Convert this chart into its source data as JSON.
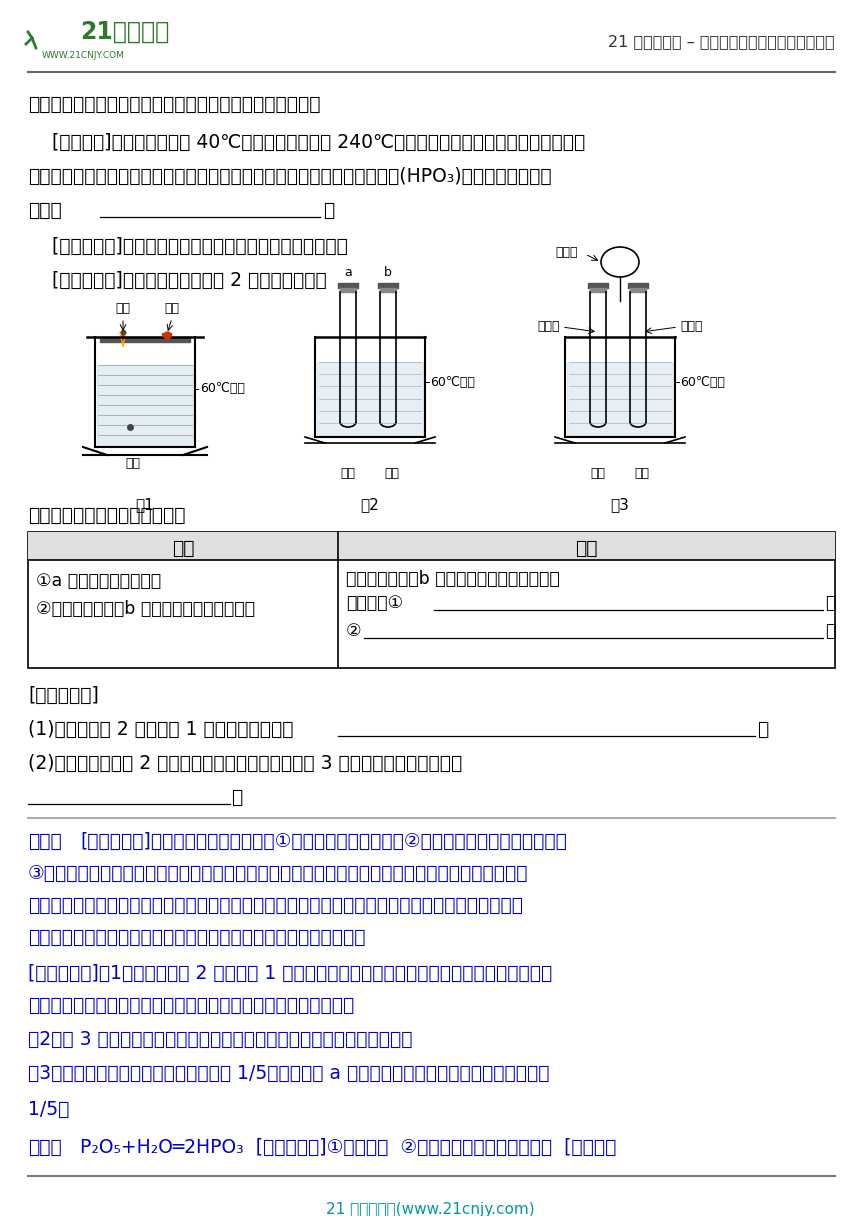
{
  "header_right": "21 世纪教育网 – 中小学教育资源及组卷应用平台",
  "footer_text": "21 世纪教育网(www.21cnjy.com)",
  "line1": "大家对磷燃烧生成的大量白烟是否危害人体健康提出疑问。",
  "line2_a": "    [查阅资料]白磷的着火点是 40℃，红磷的着火点是 240℃，燃烧产物五氧化二磷是白色固体，会",
  "line3": "刺激人体呼吸道，五氧化二磷可能与空气中水蒸气反应，生成有毒的偏磷酸(HPO₃)，该反应的化学方",
  "line4_pre": "程式为",
  "line4_post": "。",
  "line5": "    [变流与讨论]白烟对人体健康有害，该实验装置必须改进。",
  "line6": "    [改进与实验]同学们按改进后的图 2 装置进行实验。",
  "line_qing": "请你帮助他们将下表补充完整：",
  "tbl_h1": "现象",
  "tbl_h2": "解释",
  "tbl_c1a": "①a 试管中的白磷燃烧；",
  "tbl_c1b": "②烧杯中的白磷、b 试管中的红磷没有燃烧。",
  "tbl_c2a": "烧杯中的白磷、b 试管中的红磷没有燃烧的原",
  "tbl_c2b": "因分别是①",
  "tbl_c2b_post": "；",
  "tbl_c2c": "②",
  "tbl_c2c_post": "。",
  "fansi_hdr": "[反思与评价]",
  "fansi1_pre": "(1)改进后的图 2 装置与图 1 装置比较，优点是",
  "fansi1_post": "。",
  "fansi2": "(2)小林同学指出图 2 装置仍有不足之处，并设计了图 3 装置，其中气球的作用是",
  "fansi2b_post": "。",
  "jiexi_bold": "解析：",
  "jiexi_l1": "[改进与实验]燃烧必须达到三个条件：①物质本身具有可燃性，②可燃物与助燃物充分地接触，",
  "jiexi_l2": "③达到可燃物的着火点。所以投入水中的白磷虽然温度达到着火点，但是在水中与空气隔绝，所以不",
  "jiexi_l3": "会燃烧；试管中的白磷会燃烧，它的温度即达到着火点又与空气接触，满足燃烧的条件；试管中的红",
  "jiexi_l4": "磷尽管与空气接触，但是温度没有达到它的着火点，所以不会燃烧。",
  "fansi_j1": "[反思与评价]（1）改进后的图 2 装置与图 1 装置比较燃烧后的产物在试管中不会散发到空气里，所",
  "fansi_j2": "以优点是能防止白磷燃烧产生的五氧化二磷逸散，危害人体健康；",
  "fansi_j3": "（2）图 3 装置中气球的作用是：避免橡皮塞因试管内气体热膨胀而松动；",
  "fansi_j4": "（3）空气中氧气的体积约占空气体积的 1/5，所以进入 a 试管内液体的体积约占试管内空气体积的",
  "fansi_j5": "1/5。",
  "ans_bold": "答案：",
  "ans_text": "P₂O₅+H₂O═2HPO₃  [改进与实验]①没有氧气  ②温度没有达到红磷的着火点  [反思与评",
  "bg": "#ffffff",
  "tc": "#000000",
  "blue": "#0000cc",
  "green_dark": "#1a6b1a",
  "gray_line": "#888888",
  "cyan_footer": "#009999"
}
